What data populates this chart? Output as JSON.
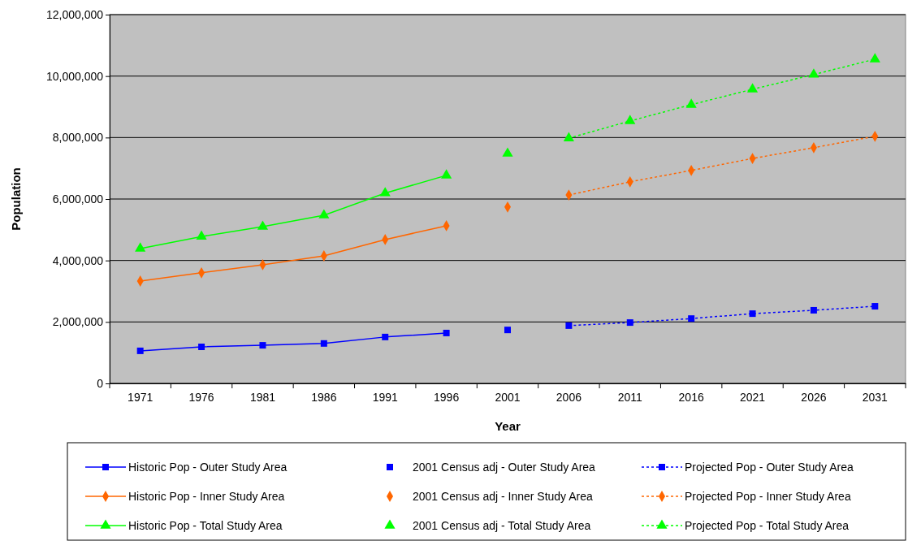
{
  "chart_data": {
    "type": "line",
    "xlabel": "Year",
    "ylabel": "Population",
    "categories": [
      "1971",
      "1976",
      "1981",
      "1986",
      "1991",
      "1996",
      "2001",
      "2006",
      "2011",
      "2016",
      "2021",
      "2026",
      "2031"
    ],
    "ylim": [
      0,
      12000000
    ],
    "yticks": [
      {
        "value": 0,
        "label": "0"
      },
      {
        "value": 2000000,
        "label": "2,000,000"
      },
      {
        "value": 4000000,
        "label": "4,000,000"
      },
      {
        "value": 6000000,
        "label": "6,000,000"
      },
      {
        "value": 8000000,
        "label": "8,000,000"
      },
      {
        "value": 10000000,
        "label": "10,000,000"
      },
      {
        "value": 12000000,
        "label": "12,000,000"
      }
    ],
    "grid": "y",
    "legend": "bottom",
    "series": [
      {
        "name": "Historic Pop - Outer Study Area",
        "type": "line",
        "marker": "square",
        "line_style": "solid",
        "color": "#0000ff",
        "values": [
          1060000,
          1190000,
          1240000,
          1300000,
          1510000,
          1640000,
          null,
          null,
          null,
          null,
          null,
          null,
          null
        ]
      },
      {
        "name": "2001 Census adj - Outer Study Area",
        "type": "scatter",
        "marker": "square",
        "color": "#0000ff",
        "values": [
          null,
          null,
          null,
          null,
          null,
          null,
          1740000,
          null,
          null,
          null,
          null,
          null,
          null
        ]
      },
      {
        "name": "Projected Pop - Outer Study Area",
        "type": "line",
        "marker": "square",
        "line_style": "dotted",
        "color": "#0000ff",
        "values": [
          null,
          null,
          null,
          null,
          null,
          null,
          null,
          1880000,
          1980000,
          2110000,
          2270000,
          2380000,
          2510000
        ]
      },
      {
        "name": "Historic Pop - Inner Study Area",
        "type": "line",
        "marker": "diamond",
        "line_style": "solid",
        "color": "#ff6600",
        "values": [
          3330000,
          3600000,
          3860000,
          4150000,
          4680000,
          5130000,
          null,
          null,
          null,
          null,
          null,
          null,
          null
        ]
      },
      {
        "name": "2001 Census adj - Inner Study Area",
        "type": "scatter",
        "marker": "diamond",
        "color": "#ff6600",
        "values": [
          null,
          null,
          null,
          null,
          null,
          null,
          5740000,
          null,
          null,
          null,
          null,
          null,
          null
        ]
      },
      {
        "name": "Projected Pop - Inner Study Area",
        "type": "line",
        "marker": "diamond",
        "line_style": "dotted",
        "color": "#ff6600",
        "values": [
          null,
          null,
          null,
          null,
          null,
          null,
          null,
          6130000,
          6560000,
          6930000,
          7320000,
          7670000,
          8040000
        ]
      },
      {
        "name": "Historic Pop - Total Study Area",
        "type": "line",
        "marker": "triangle",
        "line_style": "solid",
        "color": "#00ff00",
        "values": [
          4390000,
          4780000,
          5100000,
          5470000,
          6190000,
          6770000,
          null,
          null,
          null,
          null,
          null,
          null,
          null
        ]
      },
      {
        "name": "2001 Census adj - Total Study Area",
        "type": "scatter",
        "marker": "triangle",
        "color": "#00ff00",
        "values": [
          null,
          null,
          null,
          null,
          null,
          null,
          7480000,
          null,
          null,
          null,
          null,
          null,
          null
        ]
      },
      {
        "name": "Projected Pop - Total Study Area",
        "type": "line",
        "marker": "triangle",
        "line_style": "dotted",
        "color": "#00ff00",
        "values": [
          null,
          null,
          null,
          null,
          null,
          null,
          null,
          7980000,
          8540000,
          9070000,
          9570000,
          10050000,
          10550000
        ]
      }
    ]
  }
}
